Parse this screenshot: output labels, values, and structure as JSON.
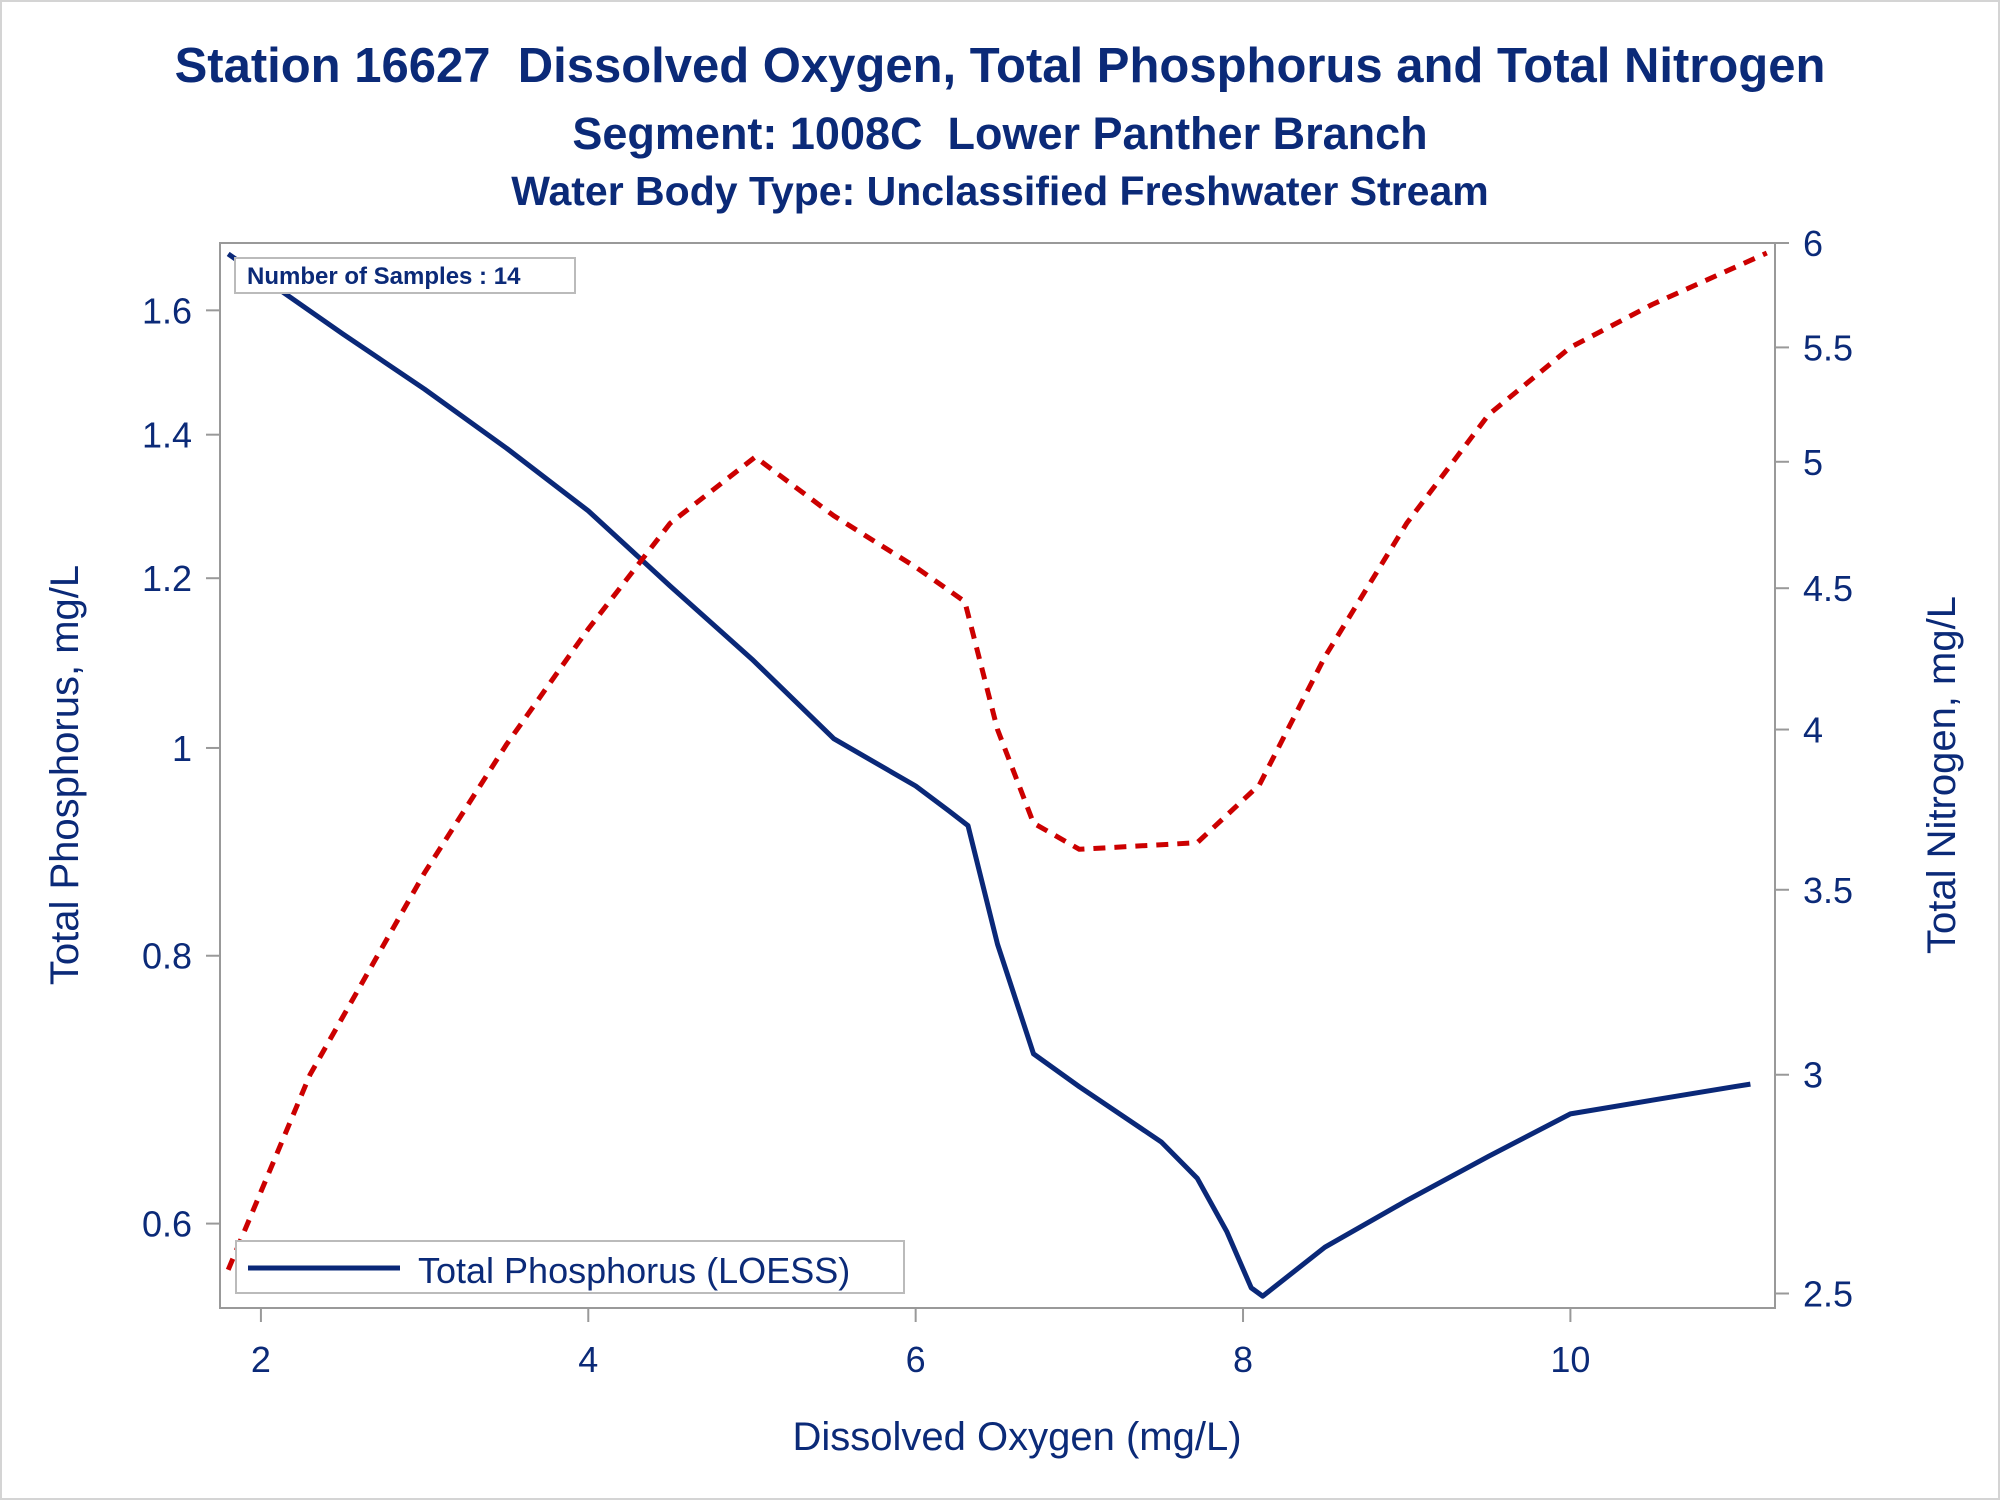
{
  "titles": {
    "line1": "Station 16627  Dissolved Oxygen, Total Phosphorus and Total Nitrogen",
    "line2": "Segment: 1008C  Lower Panther Branch",
    "line3": "Water Body Type: Unclassified Freshwater Stream"
  },
  "inset": {
    "samples_text": "Number of Samples : 14"
  },
  "colors": {
    "text": "#0b2a78",
    "phosphorus_line": "#0a2878",
    "nitrogen_line": "#cc0000",
    "frame": "#999999"
  },
  "chart_data": {
    "type": "line",
    "xlabel": "Dissolved Oxygen (mg/L)",
    "ylabel": "Total Phosphorus, mg/L",
    "y2label": "Total Nitrogen, mg/L",
    "x_ticks": [
      2,
      4,
      6,
      8,
      10
    ],
    "y_ticks": [
      0.6,
      0.8,
      1,
      1.2,
      1.4,
      1.6
    ],
    "y2_ticks": [
      2.5,
      3,
      3.5,
      4,
      4.5,
      5,
      5.5,
      6
    ],
    "xlim": [
      1.75,
      11.25
    ],
    "ylim": [
      0.548,
      1.72
    ],
    "y2lim": [
      2.47,
      6.0
    ],
    "y_scale": "log",
    "y2_scale": "log",
    "legend": {
      "position": "bottom-left",
      "entries": [
        "Total Phosphorus (LOESS)"
      ]
    },
    "series": [
      {
        "name": "Total Phosphorus (LOESS)",
        "axis": "left",
        "style": "solid",
        "x": [
          1.8,
          2.5,
          3.0,
          3.5,
          4.0,
          4.5,
          5.0,
          5.5,
          6.0,
          6.2,
          6.32,
          6.5,
          6.72,
          7.0,
          7.5,
          7.72,
          7.9,
          8.05,
          8.12,
          8.5,
          9.0,
          9.5,
          10.0,
          10.5,
          11.0,
          11.1
        ],
        "y": [
          1.7,
          1.56,
          1.47,
          1.38,
          1.29,
          1.19,
          1.1,
          1.01,
          0.96,
          0.935,
          0.92,
          0.81,
          0.72,
          0.695,
          0.655,
          0.63,
          0.595,
          0.56,
          0.555,
          0.585,
          0.615,
          0.645,
          0.675,
          0.685,
          0.695,
          0.697
        ]
      },
      {
        "axis": "right",
        "style": "dashed",
        "x": [
          1.8,
          2.3,
          3.0,
          3.5,
          4.0,
          4.5,
          5.02,
          5.5,
          6.0,
          6.3,
          6.5,
          6.72,
          7.0,
          7.72,
          8.1,
          8.5,
          9.0,
          9.5,
          10.0,
          10.5,
          11.2
        ],
        "y": [
          2.55,
          3.0,
          3.55,
          3.95,
          4.35,
          4.75,
          5.02,
          4.78,
          4.58,
          4.45,
          4.0,
          3.7,
          3.62,
          3.64,
          3.82,
          4.25,
          4.75,
          5.2,
          5.5,
          5.7,
          5.95
        ]
      }
    ]
  }
}
